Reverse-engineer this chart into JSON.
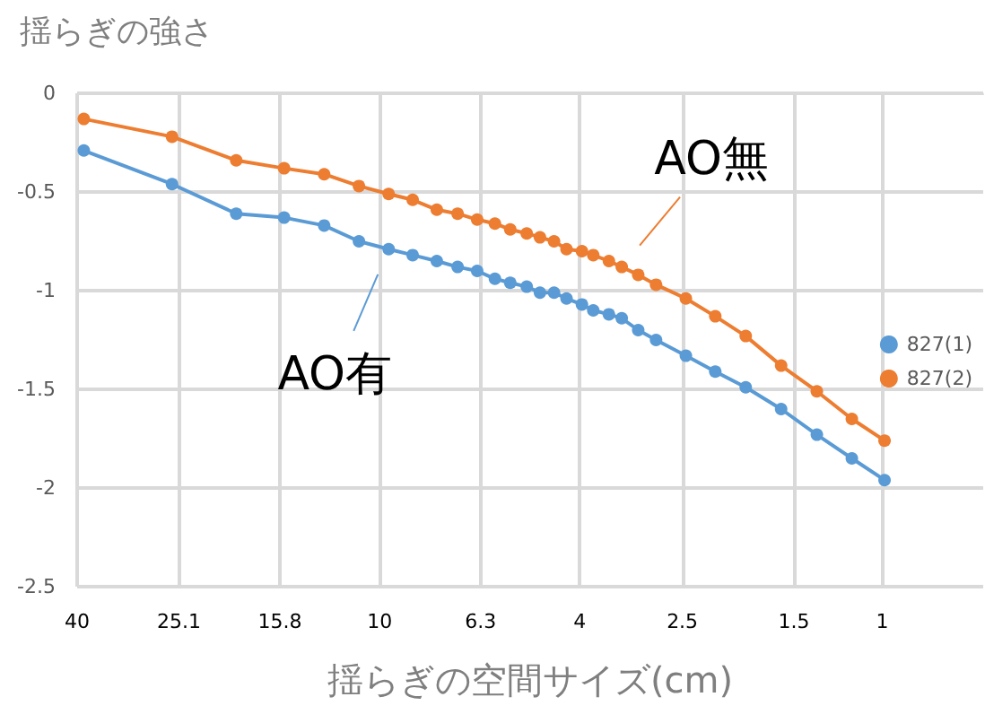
{
  "chart_data": {
    "type": "line",
    "title": "揺らぎの強さ",
    "xlabel": "揺らぎの空間サイズ(cm)",
    "log": "x",
    "xlim": [
      40,
      0.63
    ],
    "xticks": [
      40,
      25.1,
      15.8,
      10,
      6.3,
      4,
      2.5,
      1.5,
      1
    ],
    "ylim": [
      -2.5,
      0
    ],
    "yticks": [
      -2.5,
      -2,
      -1.5,
      -1,
      -0.5,
      0
    ],
    "grid": true,
    "legend": "right",
    "marker": "circle",
    "line_style": "solid",
    "annotations": [
      {
        "text": "AO有",
        "x": 9.6,
        "y": -0.79
      },
      {
        "text": "AO無",
        "x": 3.3,
        "y": -0.88
      }
    ],
    "series": [
      {
        "name": "827(1)",
        "color": "#5b9bd5",
        "x": [
          38.8,
          25.9,
          19.3,
          15.5,
          12.9,
          11,
          9.6,
          8.6,
          7.7,
          7,
          6.4,
          5.9,
          5.5,
          5.1,
          4.8,
          4.5,
          4.25,
          3.96,
          3.76,
          3.5,
          3.3,
          3.06,
          2.82,
          2.46,
          2.15,
          1.87,
          1.59,
          1.35,
          1.15,
          0.99
        ],
        "values": [
          -0.29,
          -0.46,
          -0.61,
          -0.63,
          -0.67,
          -0.75,
          -0.79,
          -0.82,
          -0.85,
          -0.88,
          -0.9,
          -0.94,
          -0.96,
          -0.98,
          -1.01,
          -1.01,
          -1.04,
          -1.07,
          -1.1,
          -1.12,
          -1.14,
          -1.2,
          -1.25,
          -1.33,
          -1.41,
          -1.49,
          -1.6,
          -1.73,
          -1.85,
          -1.96
        ]
      },
      {
        "name": "827(2)",
        "color": "#ed7d31",
        "x": [
          38.8,
          25.9,
          19.3,
          15.5,
          12.9,
          11,
          9.6,
          8.6,
          7.7,
          7,
          6.4,
          5.9,
          5.5,
          5.1,
          4.8,
          4.5,
          4.25,
          3.96,
          3.76,
          3.5,
          3.3,
          3.06,
          2.82,
          2.46,
          2.15,
          1.87,
          1.59,
          1.35,
          1.15,
          0.99
        ],
        "values": [
          -0.13,
          -0.22,
          -0.34,
          -0.38,
          -0.41,
          -0.47,
          -0.51,
          -0.54,
          -0.59,
          -0.61,
          -0.64,
          -0.66,
          -0.69,
          -0.71,
          -0.73,
          -0.75,
          -0.79,
          -0.8,
          -0.82,
          -0.85,
          -0.88,
          -0.92,
          -0.97,
          -1.04,
          -1.13,
          -1.23,
          -1.38,
          -1.51,
          -1.65,
          -1.76
        ]
      }
    ]
  }
}
